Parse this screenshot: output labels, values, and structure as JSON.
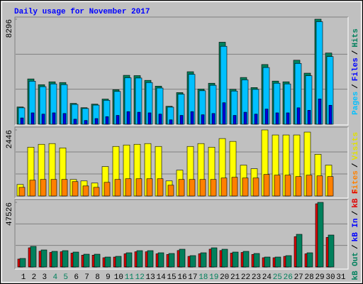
{
  "chart_data": [
    {
      "type": "bar",
      "title": "Daily usage for November 2017",
      "ylim": [
        0,
        8296
      ],
      "yticks": [
        8296
      ],
      "grid": true,
      "legend_separator": "/",
      "series": [
        {
          "name": "Hits",
          "color": "#00805c",
          "label_color": "#00805c",
          "values": [
            1364,
            3580,
            3125,
            3352,
            3296,
            1648,
            1307,
            1591,
            1989,
            2727,
            3864,
            3841,
            3466,
            3011,
            1420,
            2500,
            4148,
            2784,
            3239,
            6478,
            2760,
            3693,
            2898,
            4716,
            3409,
            3353,
            5057,
            4034,
            8296,
            5625,
            null
          ]
        },
        {
          "name": "Files",
          "color": "#00c0ff",
          "label_color": "#0000ff",
          "values": [
            1296,
            3401,
            2969,
            3184,
            3131,
            1566,
            1242,
            1511,
            1890,
            2591,
            3671,
            3649,
            3293,
            2860,
            1349,
            2375,
            3941,
            2645,
            3077,
            6154,
            2622,
            3508,
            2753,
            4480,
            3239,
            3185,
            4804,
            3832,
            8100,
            5344,
            null
          ]
        },
        {
          "name": "Pages",
          "color": "#0000e0",
          "label_color": "#00c0ff",
          "values": [
            500,
            900,
            800,
            900,
            850,
            400,
            300,
            450,
            600,
            700,
            1000,
            950,
            900,
            800,
            350,
            700,
            1000,
            750,
            850,
            1700,
            700,
            950,
            800,
            1200,
            900,
            900,
            1300,
            1100,
            2000,
            1500,
            null
          ]
        }
      ]
    },
    {
      "type": "bar",
      "ylim": [
        0,
        2446
      ],
      "yticks": [
        2446
      ],
      "grid": true,
      "legend_separator": "/",
      "series": [
        {
          "name": "Visits",
          "color": "#ffff00",
          "label_color": "#e0e000",
          "values": [
            425,
            1808,
            1914,
            1941,
            1781,
            611,
            558,
            479,
            1090,
            1835,
            1888,
            1914,
            1941,
            1835,
            558,
            957,
            1835,
            1941,
            1808,
            2127,
            2021,
            1143,
            1010,
            2446,
            2260,
            2260,
            2260,
            2366,
            1542,
            1143,
            null
          ]
        },
        {
          "name": "Sites",
          "color": "#ff8000",
          "label_color": "#ff8000",
          "values": [
            319,
            585,
            612,
            612,
            612,
            532,
            372,
            319,
            505,
            612,
            638,
            638,
            638,
            638,
            399,
            612,
            612,
            612,
            612,
            665,
            691,
            665,
            665,
            798,
            771,
            771,
            718,
            771,
            744,
            718,
            null
          ]
        }
      ]
    },
    {
      "type": "bar",
      "ylim": [
        0,
        47526
      ],
      "yticks": [
        47526
      ],
      "grid": true,
      "legend_separator": "/",
      "categories": [
        "1",
        "2",
        "3",
        "4",
        "5",
        "6",
        "7",
        "8",
        "9",
        "10",
        "11",
        "12",
        "13",
        "14",
        "15",
        "16",
        "17",
        "18",
        "19",
        "20",
        "21",
        "22",
        "23",
        "24",
        "25",
        "26",
        "27",
        "28",
        "29",
        "30",
        "31"
      ],
      "category_colors": [
        "#000000",
        "#000000",
        "#000000",
        "#00805c",
        "#00805c",
        "#000000",
        "#000000",
        "#000000",
        "#000000",
        "#000000",
        "#00805c",
        "#00805c",
        "#000000",
        "#000000",
        "#000000",
        "#000000",
        "#000000",
        "#00805c",
        "#00805c",
        "#000000",
        "#000000",
        "#000000",
        "#000000",
        "#000000",
        "#00805c",
        "#00805c",
        "#000000",
        "#000000",
        "#000000",
        "#000000",
        "#000000"
      ],
      "series": [
        {
          "name": "kB F",
          "color": "#e00000",
          "label_color": "#e00000",
          "values": [
            5800,
            14100,
            11600,
            10700,
            11200,
            10200,
            8700,
            8700,
            6800,
            7300,
            9700,
            11200,
            11200,
            9700,
            9200,
            12100,
            7800,
            9700,
            13100,
            12100,
            10200,
            10700,
            9200,
            6800,
            6800,
            7800,
            22300,
            9700,
            46480,
            21800,
            null
          ]
        },
        {
          "name": "kB In",
          "color": "#0000ff",
          "label_color": "#0000ff",
          "values": [
            210,
            260,
            230,
            220,
            240,
            200,
            180,
            190,
            160,
            170,
            200,
            230,
            220,
            210,
            200,
            240,
            170,
            200,
            250,
            240,
            210,
            220,
            200,
            160,
            160,
            170,
            300,
            210,
            400,
            310,
            null
          ]
        },
        {
          "name": "kB Out",
          "color": "#00805c",
          "label_color": "#00805c",
          "values": [
            6267,
            15146,
            12535,
            11490,
            12013,
            10968,
            9401,
            9401,
            7312,
            7834,
            10446,
            12013,
            12013,
            10446,
            9923,
            13057,
            8356,
            10446,
            14101,
            13057,
            10968,
            11490,
            9923,
            7312,
            7312,
            8356,
            24025,
            10446,
            47526,
            23503,
            null
          ]
        }
      ]
    }
  ]
}
